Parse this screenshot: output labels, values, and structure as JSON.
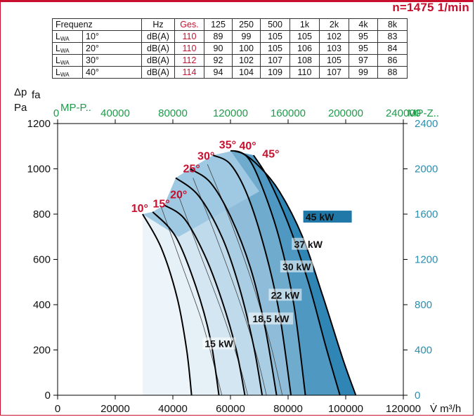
{
  "header": {
    "speed": "n=1475 1/min"
  },
  "noise_table": {
    "headers": [
      "Frequenz",
      "",
      "Hz",
      "Ges.",
      "125",
      "250",
      "500",
      "1k",
      "2k",
      "4k",
      "8k"
    ],
    "rows": [
      {
        "label": "L",
        "sub": "WA",
        "angle": "10°",
        "unit": "dB(A)",
        "ges": "110",
        "values": [
          "89",
          "99",
          "105",
          "105",
          "102",
          "95",
          "83"
        ]
      },
      {
        "label": "L",
        "sub": "WA",
        "angle": "20°",
        "unit": "dB(A)",
        "ges": "110",
        "values": [
          "90",
          "100",
          "105",
          "106",
          "103",
          "95",
          "84"
        ]
      },
      {
        "label": "L",
        "sub": "WA",
        "angle": "30°",
        "unit": "dB(A)",
        "ges": "112",
        "values": [
          "92",
          "102",
          "107",
          "108",
          "105",
          "97",
          "86"
        ]
      },
      {
        "label": "L",
        "sub": "WA",
        "angle": "40°",
        "unit": "dB(A)",
        "ges": "114",
        "values": [
          "94",
          "104",
          "109",
          "110",
          "107",
          "99",
          "88"
        ]
      }
    ]
  },
  "chart_data": {
    "type": "line",
    "ylabel_main": "Δp",
    "ylabel_sub": "fa",
    "ylabel_unit": "Pa",
    "xlabel": "V̇ m³/h",
    "x_ticks": [
      "0",
      "20000",
      "40000",
      "60000",
      "80000",
      "100000",
      "120000"
    ],
    "xlim": [
      0,
      120000
    ],
    "y_ticks": [
      "0",
      "200",
      "400",
      "600",
      "800",
      "1000",
      "1200"
    ],
    "ylim": [
      0,
      1200
    ],
    "top_axis": {
      "label_left": "MP-P..",
      "label_right": "MP-Z..",
      "ticks": [
        "0",
        "40000",
        "80000",
        "120000",
        "160000",
        "200000",
        "240000"
      ],
      "range": [
        0,
        240000
      ]
    },
    "right_axis": {
      "ticks": [
        "0",
        "400",
        "800",
        "1200",
        "1600",
        "2000",
        "2400"
      ],
      "range": [
        0,
        2400
      ]
    },
    "blade_angle_labels": [
      {
        "text": "10°",
        "x": 28500,
        "y": 810
      },
      {
        "text": "15°",
        "x": 36000,
        "y": 830
      },
      {
        "text": "20°",
        "x": 42000,
        "y": 870
      },
      {
        "text": "25°",
        "x": 46500,
        "y": 985
      },
      {
        "text": "30°",
        "x": 51500,
        "y": 1040
      },
      {
        "text": "35°",
        "x": 59000,
        "y": 1090
      },
      {
        "text": "40°",
        "x": 66000,
        "y": 1085
      },
      {
        "text": "45°",
        "x": 74000,
        "y": 1050
      }
    ],
    "series": [
      {
        "name": "10°",
        "values": [
          [
            29500,
            800
          ],
          [
            36000,
            650
          ],
          [
            41500,
            430
          ],
          [
            44800,
            200
          ],
          [
            46500,
            0
          ]
        ]
      },
      {
        "name": "15°",
        "values": [
          [
            33000,
            810
          ],
          [
            41000,
            700
          ],
          [
            48000,
            480
          ],
          [
            53000,
            250
          ],
          [
            56000,
            0
          ]
        ]
      },
      {
        "name": "20°",
        "values": [
          [
            37000,
            840
          ],
          [
            44000,
            780
          ],
          [
            51000,
            620
          ],
          [
            57000,
            420
          ],
          [
            62000,
            200
          ],
          [
            65000,
            0
          ]
        ]
      },
      {
        "name": "25°",
        "values": [
          [
            41000,
            960
          ],
          [
            49000,
            880
          ],
          [
            57000,
            700
          ],
          [
            63000,
            480
          ],
          [
            68000,
            220
          ],
          [
            71000,
            0
          ]
        ]
      },
      {
        "name": "30°",
        "values": [
          [
            46000,
            1000
          ],
          [
            53000,
            940
          ],
          [
            60000,
            790
          ],
          [
            67000,
            560
          ],
          [
            72000,
            300
          ],
          [
            76000,
            0
          ]
        ]
      },
      {
        "name": "35°",
        "values": [
          [
            54000,
            1060
          ],
          [
            60000,
            1020
          ],
          [
            66000,
            880
          ],
          [
            72000,
            640
          ],
          [
            77000,
            360
          ],
          [
            81000,
            0
          ]
        ]
      },
      {
        "name": "40°",
        "values": [
          [
            61000,
            1080
          ],
          [
            66000,
            1050
          ],
          [
            71000,
            920
          ],
          [
            77000,
            690
          ],
          [
            82000,
            400
          ],
          [
            86000,
            0
          ]
        ]
      },
      {
        "name": "45°",
        "values": [
          [
            68000,
            1060
          ],
          [
            73000,
            960
          ],
          [
            80000,
            760
          ],
          [
            87000,
            500
          ],
          [
            93000,
            220
          ],
          [
            98000,
            0
          ]
        ]
      },
      {
        "name": "limit",
        "values": [
          [
            60000,
            1080
          ],
          [
            64000,
            1070
          ],
          [
            70000,
            1010
          ],
          [
            77000,
            900
          ],
          [
            85000,
            700
          ],
          [
            92000,
            440
          ],
          [
            99000,
            160
          ],
          [
            103500,
            0
          ]
        ]
      }
    ],
    "power_labels": [
      {
        "text": "15 kW",
        "x": 56000,
        "y": 215
      },
      {
        "text": "18,5 kW",
        "x": 74000,
        "y": 325
      },
      {
        "text": "22 kW",
        "x": 79000,
        "y": 430
      },
      {
        "text": "30 kW",
        "x": 83000,
        "y": 555
      },
      {
        "text": "37 kW",
        "x": 87000,
        "y": 655
      },
      {
        "text": "45 kW",
        "x": 91000,
        "y": 775
      }
    ]
  }
}
